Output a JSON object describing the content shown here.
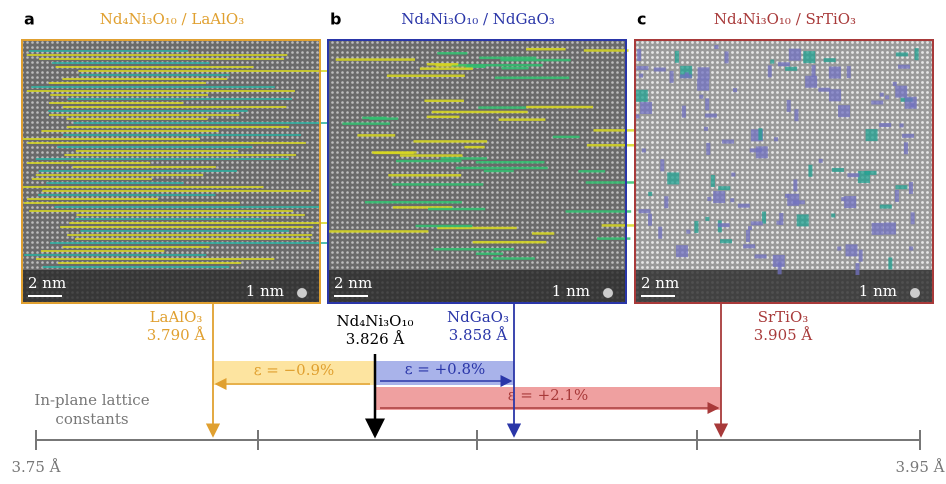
{
  "panels": [
    {
      "label": "a",
      "title": "Nd₄Ni₃O₁₀ / LaAlO₃",
      "scale_bar": "2 nm",
      "inset_scale": "1 nm"
    },
    {
      "label": "b",
      "title": "Nd₄Ni₃O₁₀ / NdGaO₃",
      "scale_bar": "2 nm",
      "inset_scale": "1 nm"
    },
    {
      "label": "c",
      "title": "Nd₄Ni₃O₁₀ / SrTiO₃",
      "scale_bar": "2 nm",
      "inset_scale": "1 nm"
    }
  ],
  "lattice": {
    "caption": [
      "In-plane lattice",
      "constants"
    ],
    "axis_min": "3.75 Å",
    "axis_max": "3.95 Å",
    "markers": [
      {
        "name": "LaAlO₃",
        "value": "3.790 Å"
      },
      {
        "name": "Nd₄Ni₃O₁₀",
        "value": "3.826 Å"
      },
      {
        "name": "NdGaO₃",
        "value": "3.858 Å"
      },
      {
        "name": "SrTiO₃",
        "value": "3.905 Å"
      }
    ],
    "strains": [
      "ε = −0.9%",
      "ε = +0.8%",
      "ε = +2.1%"
    ]
  }
}
